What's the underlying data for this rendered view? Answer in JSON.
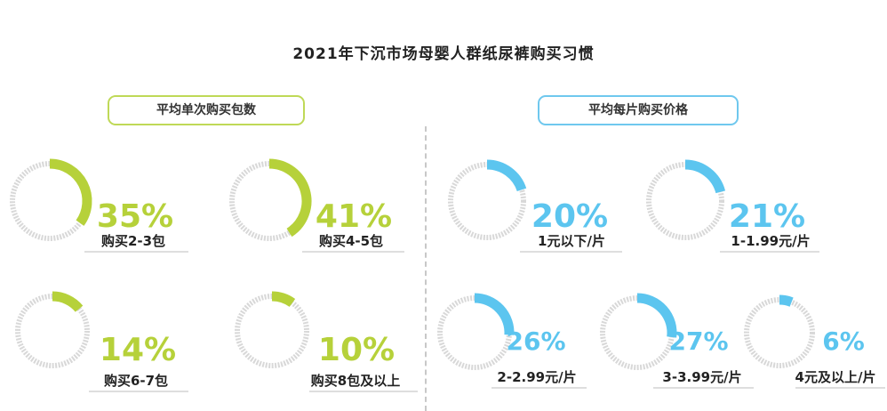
{
  "title": "2021年下沉市场母婴人群纸尿裤购买习惯",
  "colors": {
    "green": "#b6d13a",
    "blue": "#5cc5ef",
    "track": "#d8d8d8",
    "line": "#c9c9c9"
  },
  "chart_data": [
    {
      "type": "pie",
      "title": "平均单次购买包数",
      "categories": [
        "购买2-3包",
        "购买4-5包",
        "购买6-7包",
        "购买8包及以上"
      ],
      "values": [
        35,
        41,
        14,
        10
      ],
      "labels": [
        "35%",
        "41%",
        "14%",
        "10%"
      ],
      "color": "#b6d13a"
    },
    {
      "type": "pie",
      "title": "平均每片购买价格",
      "categories": [
        "1元以下/片",
        "1-1.99元/片",
        "2-2.99元/片",
        "3-3.99元/片",
        "4元及以上/片"
      ],
      "values": [
        20,
        21,
        26,
        27,
        6
      ],
      "labels": [
        "20%",
        "21%",
        "26%",
        "27%",
        "6%"
      ],
      "color": "#5cc5ef"
    }
  ]
}
